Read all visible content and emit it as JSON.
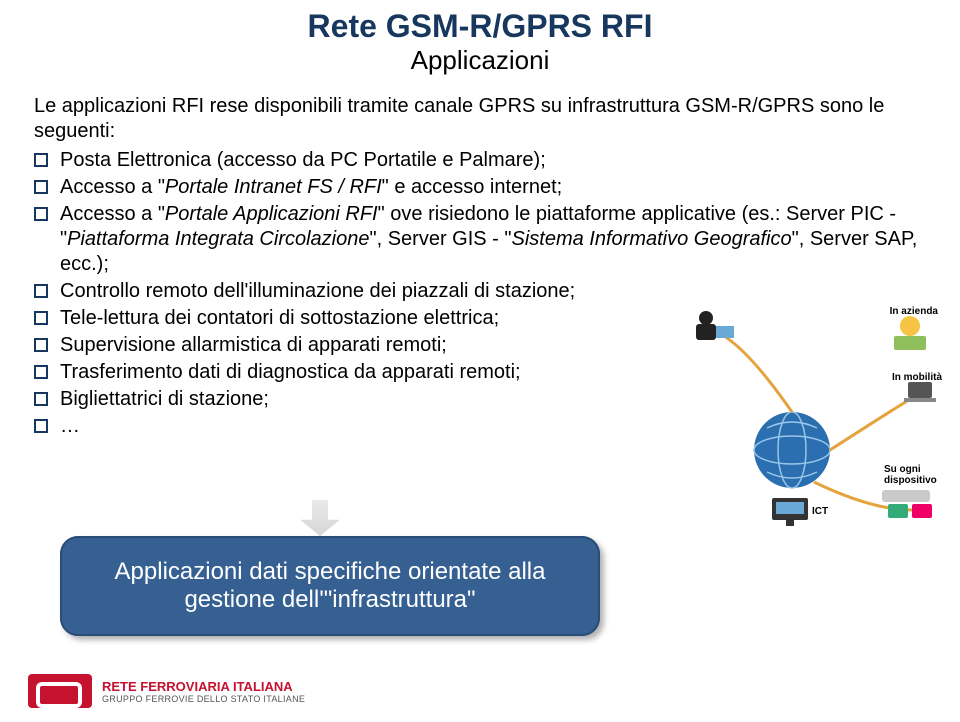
{
  "colors": {
    "title": "#17375e",
    "bullet_border": "#17375e",
    "callout_bg": "#376092",
    "logo_red": "#c4122f"
  },
  "title": "Rete GSM-R/GPRS RFI",
  "subtitle": "Applicazioni",
  "lead": "Le applicazioni RFI rese disponibili tramite canale GPRS su infrastruttura GSM-R/GPRS sono le seguenti:",
  "bullets": [
    {
      "parts": [
        {
          "text": "Posta Elettronica (accesso da PC Portatile e Palmare);",
          "italic": false
        }
      ]
    },
    {
      "parts": [
        {
          "text": "Accesso a \"",
          "italic": false
        },
        {
          "text": "Portale Intranet FS / RFI",
          "italic": true
        },
        {
          "text": "\" e accesso internet;",
          "italic": false
        }
      ]
    },
    {
      "parts": [
        {
          "text": "Accesso a \"",
          "italic": false
        },
        {
          "text": "Portale Applicazioni RFI",
          "italic": true
        },
        {
          "text": "\" ove risiedono le piattaforme applicative (es.: Server PIC - \"",
          "italic": false
        },
        {
          "text": "Piattaforma Integrata Circolazione",
          "italic": true
        },
        {
          "text": "\", Server GIS - \"",
          "italic": false
        },
        {
          "text": "Sistema Informativo Geografico",
          "italic": true
        },
        {
          "text": "\", Server SAP, ecc.);",
          "italic": false
        }
      ]
    },
    {
      "parts": [
        {
          "text": "Controllo remoto dell'illuminazione dei piazzali di stazione;",
          "italic": false
        }
      ]
    },
    {
      "parts": [
        {
          "text": "Tele-lettura dei contatori di sottostazione elettrica;",
          "italic": false
        }
      ]
    },
    {
      "parts": [
        {
          "text": "Supervisione allarmistica di apparati remoti;",
          "italic": false
        }
      ]
    },
    {
      "parts": [
        {
          "text": "Trasferimento dati di diagnostica da apparati remoti;",
          "italic": false
        }
      ]
    },
    {
      "parts": [
        {
          "text": "Bigliettatrici di stazione;",
          "italic": false
        }
      ]
    },
    {
      "parts": [
        {
          "text": "…",
          "italic": false
        }
      ]
    }
  ],
  "graphic_labels": {
    "in_azienda": "In azienda",
    "in_mobilita": "In mobilità",
    "ict": "ICT",
    "su_ogni": "Su ogni dispositivo"
  },
  "callout": "Applicazioni dati specifiche orientate alla gestione dell'\"infrastruttura\"",
  "footer": {
    "line1": "RETE FERROVIARIA ITALIANA",
    "line2": "GRUPPO FERROVIE DELLO STATO ITALIANE"
  }
}
